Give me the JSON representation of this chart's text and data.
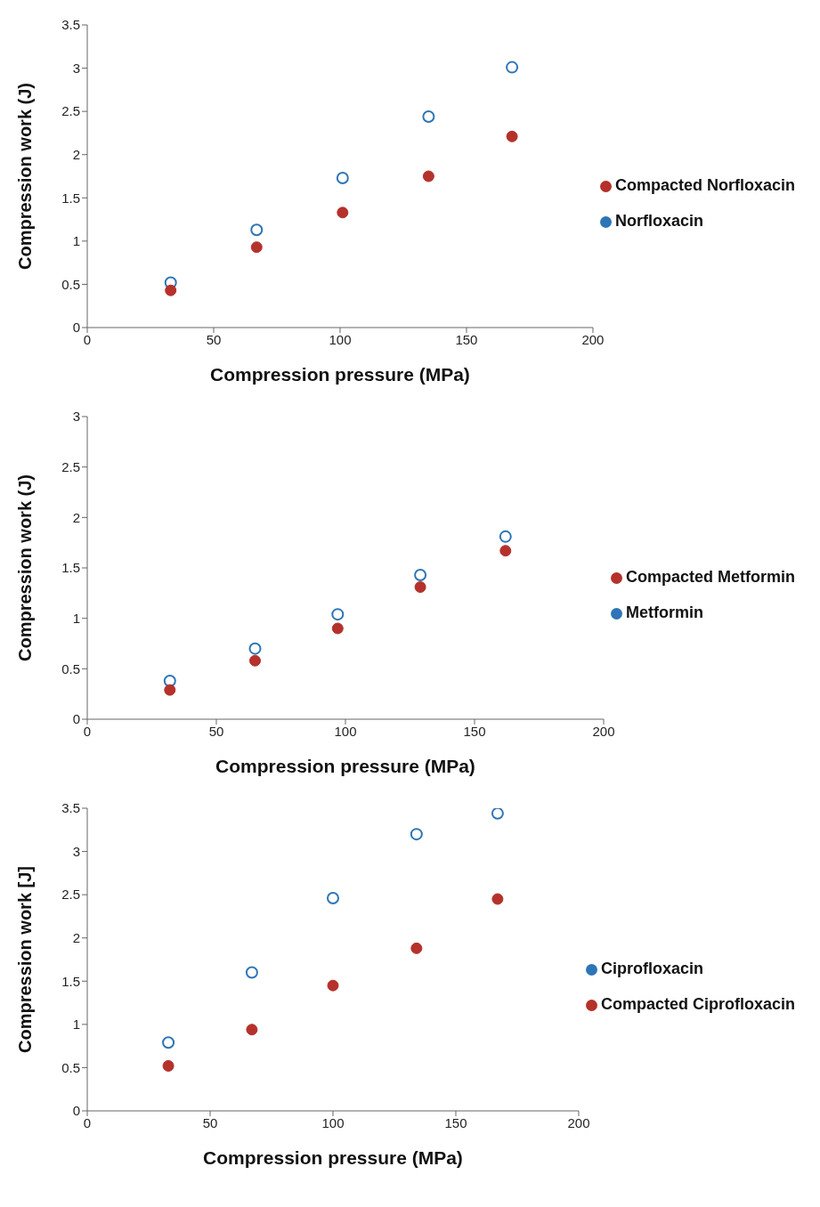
{
  "chart_data": [
    {
      "type": "scatter",
      "xlabel": "Compression pressure (MPa)",
      "ylabel": "Compression work (J)",
      "xlim": [
        0,
        200
      ],
      "xticks": [
        0,
        50,
        100,
        150,
        200
      ],
      "ylim": [
        0,
        3.5
      ],
      "yticks": [
        0,
        0.5,
        1,
        1.5,
        2,
        2.5,
        3,
        3.5
      ],
      "legend": "right",
      "marker": "circle",
      "grid": false,
      "series": [
        {
          "name": "Norfloxacin",
          "color": "#2e75b6",
          "x": [
            33,
            67,
            101,
            135,
            168
          ],
          "values": [
            0.52,
            1.13,
            1.73,
            2.44,
            3.01
          ]
        },
        {
          "name": "Compacted Norfloxacin",
          "color": "#b5312b",
          "x": [
            33,
            67,
            101,
            135,
            168
          ],
          "values": [
            0.43,
            0.93,
            1.33,
            1.75,
            2.21
          ]
        }
      ]
    },
    {
      "type": "scatter",
      "xlabel": "Compression pressure (MPa)",
      "ylabel": "Compression work (J)",
      "xlim": [
        0,
        200
      ],
      "xticks": [
        0,
        50,
        100,
        150,
        200
      ],
      "ylim": [
        0,
        3
      ],
      "yticks": [
        0,
        0.5,
        1,
        1.5,
        2,
        2.5,
        3
      ],
      "legend": "right",
      "marker": "circle",
      "grid": false,
      "series": [
        {
          "name": "Metformin",
          "color": "#2e75b6",
          "x": [
            32,
            65,
            97,
            129,
            162
          ],
          "values": [
            0.38,
            0.7,
            1.04,
            1.43,
            1.81
          ]
        },
        {
          "name": "Compacted Metformin",
          "color": "#b5312b",
          "x": [
            32,
            65,
            97,
            129,
            162
          ],
          "values": [
            0.29,
            0.58,
            0.9,
            1.31,
            1.67
          ]
        }
      ]
    },
    {
      "type": "scatter",
      "xlabel": "Compression pressure (MPa)",
      "ylabel": "Compression work [J]",
      "xlim": [
        0,
        200
      ],
      "xticks": [
        0,
        50,
        100,
        150,
        200
      ],
      "ylim": [
        0,
        3.5
      ],
      "yticks": [
        0,
        0.5,
        1,
        1.5,
        2,
        2.5,
        3,
        3.5
      ],
      "legend": "right",
      "marker": "circle",
      "grid": false,
      "series": [
        {
          "name": "Ciprofloxacin",
          "color": "#2e75b6",
          "x": [
            33,
            67,
            100,
            134,
            167
          ],
          "values": [
            0.79,
            1.6,
            2.46,
            3.2,
            3.44
          ]
        },
        {
          "name": "Compacted Ciprofloxacin",
          "color": "#b5312b",
          "x": [
            33,
            67,
            100,
            134,
            167
          ],
          "values": [
            0.52,
            0.94,
            1.45,
            1.88,
            2.45
          ]
        }
      ]
    }
  ]
}
